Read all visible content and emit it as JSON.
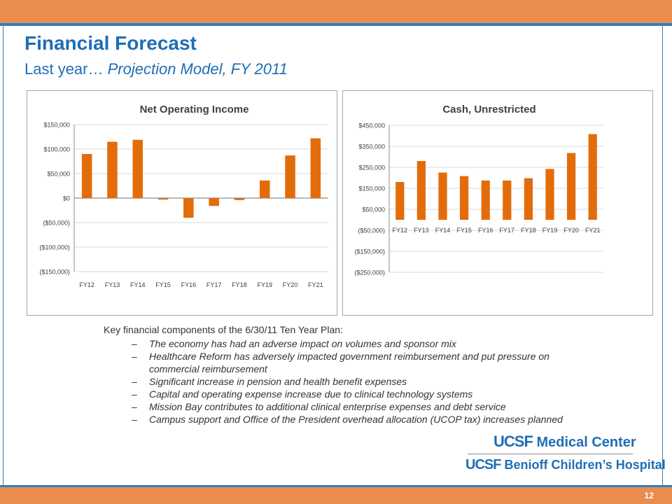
{
  "slide": {
    "title": "Financial Forecast",
    "subtitle_lead": "Last year… ",
    "subtitle_italic": "Projection Model, FY 2011",
    "page_number": "12"
  },
  "bullets": {
    "intro": "Key financial components of the 6/30/11 Ten Year Plan:",
    "dash": "–",
    "items": [
      "The economy has had an adverse impact on volumes and sponsor mix",
      "Healthcare Reform has adversely impacted government reimbursement and put pressure on commercial reimbursement",
      "Significant increase in pension and health benefit expenses",
      "Capital and operating expense increase due to clinical technology systems",
      "Mission Bay contributes to additional clinical enterprise expenses and debt service",
      "Campus support and Office of the President overhead allocation (UCOP tax) increases planned"
    ]
  },
  "logos": {
    "line1_uc": "UCSF",
    "line1_rest": " Medical Center",
    "line2_uc": "UCSF",
    "line2_rest": " Benioff Children’s Hospital"
  },
  "colors": {
    "bar": "#E36C0A",
    "accent_blue": "#1F6EB5",
    "band_orange": "#E98C4E"
  },
  "chart_data": [
    {
      "type": "bar",
      "title": "Net Operating Income",
      "categories": [
        "FY12",
        "FY13",
        "FY14",
        "FY15",
        "FY16",
        "FY17",
        "FY18",
        "FY19",
        "FY20",
        "FY21"
      ],
      "values": [
        90000,
        115000,
        119000,
        -3000,
        -40000,
        -16000,
        -4000,
        36000,
        87000,
        122000
      ],
      "ylim": [
        -150000,
        150000
      ],
      "yticks": [
        150000,
        100000,
        50000,
        0,
        -50000,
        -100000,
        -150000
      ],
      "ytick_labels": [
        "$150,000",
        "$100,000",
        "$50,000",
        "$0",
        "($50,000)",
        "($100,000)",
        "($150,000)"
      ],
      "xlabel": "",
      "ylabel": "",
      "grid": true,
      "x_labels_at": "bottom"
    },
    {
      "type": "bar",
      "title": "Cash, Unrestricted",
      "categories": [
        "FY12",
        "FY13",
        "FY14",
        "FY15",
        "FY16",
        "FY17",
        "FY18",
        "FY19",
        "FY20",
        "FY21"
      ],
      "values": [
        180000,
        280000,
        225000,
        208000,
        187000,
        187000,
        198000,
        242000,
        318000,
        408000
      ],
      "ylim": [
        -250000,
        450000
      ],
      "yticks": [
        450000,
        350000,
        250000,
        150000,
        50000,
        -50000,
        -150000,
        -250000
      ],
      "ytick_labels": [
        "$450,000",
        "$350,000",
        "$250,000",
        "$150,000",
        "$50,000",
        "($50,000)",
        "($150,000)",
        "($250,000)"
      ],
      "xlabel": "",
      "ylabel": "",
      "grid": true,
      "x_labels_at": "zero"
    }
  ]
}
